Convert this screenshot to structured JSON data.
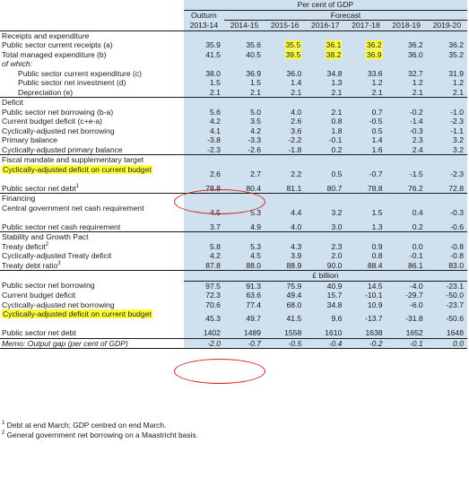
{
  "header": {
    "unit_caption": "Per cent of GDP",
    "outturn_label": "Outturn",
    "forecast_label": "Forecast",
    "years": [
      "2013-14",
      "2014-15",
      "2015-16",
      "2016-17",
      "2017-18",
      "2018-19",
      "2019-20"
    ]
  },
  "highlight_color": "#ffff38",
  "band_color": "#cfe0ee",
  "ellipse_color": "#d42020",
  "sections": {
    "receipts": "Receipts and expenditure",
    "deficit": "Deficit",
    "fiscal_mandate": "Fiscal mandate and supplementary target",
    "financing": "Financing",
    "stability": "Stability and Growth Pact",
    "billion_caption": "£ billion"
  },
  "rows": {
    "psc_receipts": {
      "label": "Public sector current receipts (a)",
      "values": [
        "35.9",
        "35.6",
        "35.5",
        "36.1",
        "36.2",
        "36.2",
        "36.2"
      ]
    },
    "tme": {
      "label": "Total managed expenditure (b)",
      "values": [
        "41.5",
        "40.5",
        "39.5",
        "38.2",
        "36.9",
        "36.0",
        "35.2"
      ]
    },
    "of_which": {
      "label": "of which:"
    },
    "psc_expenditure": {
      "label": "Public sector current expenditure (c)",
      "values": [
        "38.0",
        "36.9",
        "36.0",
        "34.8",
        "33.6",
        "32.7",
        "31.9"
      ]
    },
    "psn_investment": {
      "label": "Public sector net investment (d)",
      "values": [
        "1.5",
        "1.5",
        "1.4",
        "1.3",
        "1.2",
        "1.2",
        "1.2"
      ]
    },
    "depreciation": {
      "label": "Depreciation (e)",
      "values": [
        "2.1",
        "2.1",
        "2.1",
        "2.1",
        "2.1",
        "2.1",
        "2.1"
      ]
    },
    "psn_borrowing": {
      "label": "Public sector net borrowing (b-a)",
      "values": [
        "5.6",
        "5.0",
        "4.0",
        "2.1",
        "0.7",
        "-0.2",
        "-1.0"
      ]
    },
    "current_budget_deficit": {
      "label": "Current budget deficit (c+e-a)",
      "values": [
        "4.2",
        "3.5",
        "2.6",
        "0.8",
        "-0.5",
        "-1.4",
        "-2.3"
      ]
    },
    "cyc_adj_borrowing": {
      "label": "Cyclically-adjusted net borrowing",
      "values": [
        "4.1",
        "4.2",
        "3.6",
        "1.8",
        "0.5",
        "-0.3",
        "-1.1"
      ]
    },
    "primary_balance": {
      "label": "Primary balance",
      "values": [
        "-3.8",
        "-3.3",
        "-2.2",
        "-0.1",
        "1.4",
        "2.3",
        "3.2"
      ]
    },
    "cyc_adj_primary": {
      "label": "Cyclically-adjusted primary balance",
      "values": [
        "-2.3",
        "-2.6",
        "-1.8",
        "0.2",
        "1.6",
        "2.4",
        "3.2"
      ]
    },
    "cyc_adj_deficit_pct": {
      "label": "Cyclically-adjusted deficit on current budget",
      "values": [
        "2.6",
        "2.7",
        "2.2",
        "0.5",
        "-0.7",
        "-1.5",
        "-2.3"
      ]
    },
    "psn_debt_pct": {
      "label": "Public sector net debt",
      "sup": "1",
      "values": [
        "78.8",
        "80.4",
        "81.1",
        "80.7",
        "78.8",
        "76.2",
        "72.8"
      ]
    },
    "cg_cash_req": {
      "label": "Central government net cash requirement",
      "values": [
        "4.5",
        "5.3",
        "4.4",
        "3.2",
        "1.5",
        "0.4",
        "-0.3"
      ]
    },
    "ps_cash_req": {
      "label": "Public sector net cash requirement",
      "values": [
        "3.7",
        "4.9",
        "4.0",
        "3.0",
        "1.3",
        "0.2",
        "-0.6"
      ]
    },
    "treaty_deficit": {
      "label": "Treaty deficit",
      "sup": "2",
      "values": [
        "5.8",
        "5.3",
        "4.3",
        "2.3",
        "0.9",
        "0.0",
        "-0.8"
      ]
    },
    "cyc_adj_treaty": {
      "label": "Cyclically-adjusted Treaty deficit",
      "values": [
        "4.2",
        "4.5",
        "3.9",
        "2.0",
        "0.8",
        "-0.1",
        "-0.8"
      ]
    },
    "treaty_debt_ratio": {
      "label": "Treaty debt ratio",
      "sup": "3",
      "values": [
        "87.8",
        "88.0",
        "88.9",
        "90.0",
        "88.4",
        "86.1",
        "83.0"
      ]
    },
    "bn_psn_borrowing": {
      "label": "Public sector net borrowing",
      "values": [
        "97.5",
        "91.3",
        "75.9",
        "40.9",
        "14.5",
        "-4.0",
        "-23.1"
      ]
    },
    "bn_current_budget_deficit": {
      "label": "Current budget deficit",
      "values": [
        "72.3",
        "63.6",
        "49.4",
        "15.7",
        "-10.1",
        "-29.7",
        "-50.0"
      ]
    },
    "bn_cyc_adj_borrowing": {
      "label": "Cyclically-adjusted net borrowing",
      "values": [
        "70.6",
        "77.4",
        "68.0",
        "34.8",
        "10.9",
        "-6.0",
        "-23.7"
      ]
    },
    "bn_cyc_adj_deficit": {
      "label": "Cyclically-adjusted deficit on current budget",
      "values": [
        "45.3",
        "49.7",
        "41.5",
        "9.6",
        "-13.7",
        "-31.8",
        "-50.6"
      ]
    },
    "bn_psn_debt": {
      "label": "Public sector net debt",
      "values": [
        "1402",
        "1489",
        "1558",
        "1610",
        "1638",
        "1652",
        "1648"
      ]
    },
    "memo": {
      "label": "Memo: Output gap (per cent of GDP)",
      "values": [
        "-2.0",
        "-0.7",
        "-0.5",
        "-0.4",
        "-0.2",
        "-0.1",
        "0.0"
      ]
    }
  },
  "footnotes": [
    {
      "marker": "1",
      "text": "Debt at end March; GDP centred on end March."
    },
    {
      "marker": "2",
      "text": "General government net borrowing on a Maastricht basis."
    }
  ]
}
